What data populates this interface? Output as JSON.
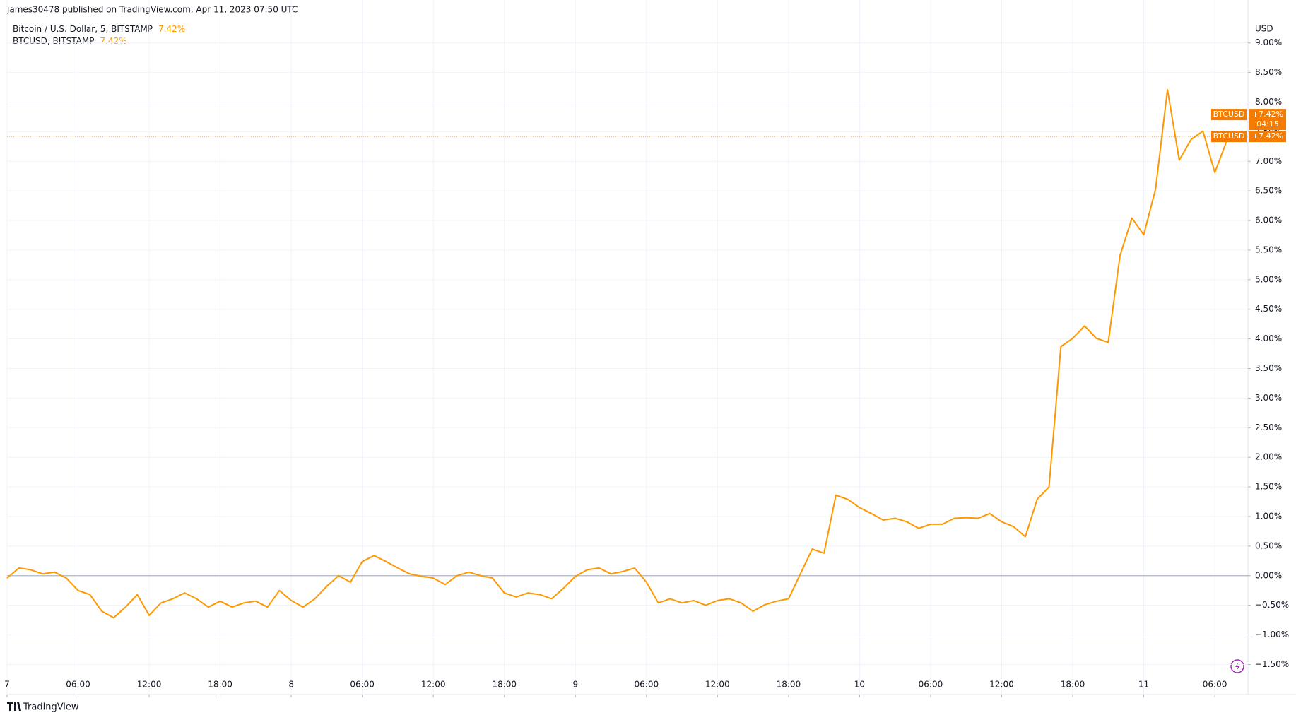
{
  "chart_data": {
    "type": "line",
    "attribution": "james30478 published on TradingView.com, Apr 11, 2023 07:50 UTC",
    "title": "Bitcoin / U.S. Dollar, 5, BITSTAMP",
    "title_change_label": "7.42%",
    "currency": "USD",
    "countdown": "04:15",
    "logo": "TradingView",
    "baseline": 0,
    "x": [
      0,
      1,
      2,
      3,
      4,
      5,
      6,
      7,
      8,
      9,
      10,
      11,
      12,
      13,
      14,
      15,
      16,
      17,
      18,
      19,
      20,
      21,
      22,
      23,
      24,
      25,
      26,
      27,
      28,
      29,
      30,
      31,
      32,
      33,
      34,
      35,
      36,
      37,
      38,
      39,
      40,
      41,
      42,
      43,
      44,
      45,
      46,
      47,
      48,
      49,
      50,
      51,
      52,
      53,
      54,
      55,
      56,
      57,
      58,
      59,
      60,
      61,
      62,
      63,
      64,
      65,
      66,
      67,
      68,
      69,
      70,
      71,
      72,
      73,
      74,
      75,
      76,
      77,
      78,
      79,
      80,
      81,
      82,
      83,
      84,
      85,
      86,
      87,
      88,
      89,
      90,
      91,
      92,
      93,
      94,
      95,
      96,
      97,
      98,
      99,
      100,
      101,
      102,
      103,
      103.25
    ],
    "xlim": [
      0,
      104.8
    ],
    "xticks": [
      {
        "value": 0,
        "label": "7"
      },
      {
        "value": 6,
        "label": "06:00"
      },
      {
        "value": 12,
        "label": "12:00"
      },
      {
        "value": 18,
        "label": "18:00"
      },
      {
        "value": 24,
        "label": "8"
      },
      {
        "value": 30,
        "label": "06:00"
      },
      {
        "value": 36,
        "label": "12:00"
      },
      {
        "value": 42,
        "label": "18:00"
      },
      {
        "value": 48,
        "label": "9"
      },
      {
        "value": 54,
        "label": "06:00"
      },
      {
        "value": 60,
        "label": "12:00"
      },
      {
        "value": 66,
        "label": "18:00"
      },
      {
        "value": 72,
        "label": "10"
      },
      {
        "value": 78,
        "label": "06:00"
      },
      {
        "value": 84,
        "label": "12:00"
      },
      {
        "value": 90,
        "label": "18:00"
      },
      {
        "value": 96,
        "label": "11"
      },
      {
        "value": 102,
        "label": "06:00"
      }
    ],
    "ylim": [
      -1.65,
      9.45
    ],
    "yticks": [
      {
        "value": 9,
        "label": "9.00%"
      },
      {
        "value": 8.5,
        "label": "8.50%"
      },
      {
        "value": 8,
        "label": "8.00%"
      },
      {
        "value": 7.5,
        "label": "7.50%"
      },
      {
        "value": 7,
        "label": "7.00%"
      },
      {
        "value": 6.5,
        "label": "6.50%"
      },
      {
        "value": 6,
        "label": "6.00%"
      },
      {
        "value": 5.5,
        "label": "5.50%"
      },
      {
        "value": 5,
        "label": "5.00%"
      },
      {
        "value": 4.5,
        "label": "4.50%"
      },
      {
        "value": 4,
        "label": "4.00%"
      },
      {
        "value": 3.5,
        "label": "3.50%"
      },
      {
        "value": 3,
        "label": "3.00%"
      },
      {
        "value": 2.5,
        "label": "2.50%"
      },
      {
        "value": 2,
        "label": "2.00%"
      },
      {
        "value": 1.5,
        "label": "1.50%"
      },
      {
        "value": 1,
        "label": "1.00%"
      },
      {
        "value": 0.5,
        "label": "0.50%"
      },
      {
        "value": 0,
        "label": "0.00%"
      },
      {
        "value": -0.5,
        "label": "−0.50%"
      },
      {
        "value": -1,
        "label": "−1.00%"
      },
      {
        "value": -1.5,
        "label": "−1.50%"
      }
    ],
    "grid": true,
    "series": [
      {
        "name": "BTCUSD, BITSTAMP",
        "tag": "BTCUSD",
        "color": "#ff9800",
        "tag_color": "#f57c00",
        "change_label": "7.42%",
        "last_label": "+7.42%",
        "values": [
          -0.04,
          0.13,
          0.1,
          0.03,
          0.06,
          -0.04,
          -0.25,
          -0.32,
          -0.6,
          -0.71,
          -0.53,
          -0.32,
          -0.67,
          -0.46,
          -0.39,
          -0.29,
          -0.39,
          -0.53,
          -0.43,
          -0.53,
          -0.46,
          -0.43,
          -0.53,
          -0.25,
          -0.42,
          -0.53,
          -0.39,
          -0.18,
          0,
          -0.11,
          0.24,
          0.34,
          0.24,
          0.13,
          0.03,
          -0.01,
          -0.04,
          -0.15,
          0,
          0.06,
          0,
          -0.04,
          -0.29,
          -0.36,
          -0.29,
          -0.32,
          -0.39,
          -0.21,
          -0.01,
          0.1,
          0.13,
          0.03,
          0.07,
          0.13,
          -0.11,
          -0.46,
          -0.39,
          -0.46,
          -0.42,
          -0.5,
          -0.42,
          -0.39,
          -0.46,
          -0.6,
          -0.49,
          -0.43,
          -0.39,
          0.03,
          0.45,
          0.38,
          1.36,
          1.29,
          1.15,
          1.05,
          0.94,
          0.97,
          0.91,
          0.8,
          0.87,
          0.87,
          0.97,
          0.98,
          0.97,
          1.05,
          0.91,
          0.83,
          0.66,
          1.29,
          1.5,
          3.87,
          4.01,
          4.22,
          4.01,
          3.94,
          5.41,
          6.04,
          5.76,
          6.53,
          8.21,
          7.02,
          7.37,
          7.51,
          6.81,
          7.34,
          7.42
        ]
      }
    ]
  }
}
